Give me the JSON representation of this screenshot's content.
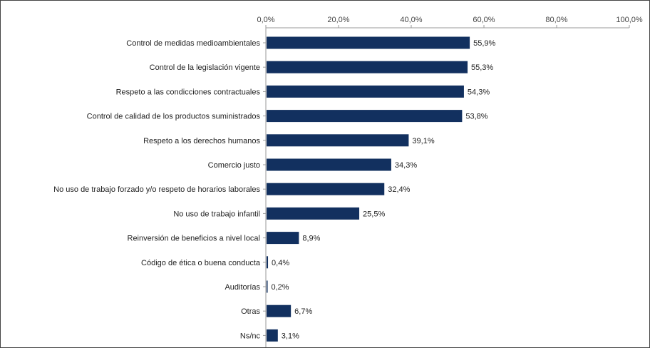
{
  "chart_data": {
    "type": "bar",
    "orientation": "horizontal",
    "categories": [
      "Control de  medidas medioambientales",
      "Control de la legislación vigente",
      "Respeto a las condicciones contractuales",
      "Control de calidad de los productos suministrados",
      "Respeto a los derechos humanos",
      "Comercio justo",
      "No uso de trabajo forzado y/o respeto de horarios laborales",
      "No uso de trabajo infantil",
      "Reinversión de beneficios a nivel local",
      "Código de ética o buena conducta",
      "Auditorías",
      "Otras",
      "Ns/nc"
    ],
    "values": [
      55.9,
      55.3,
      54.3,
      53.8,
      39.1,
      34.3,
      32.4,
      25.5,
      8.9,
      0.4,
      0.2,
      6.7,
      3.1
    ],
    "value_labels": [
      "55,9%",
      "55,3%",
      "54,3%",
      "53,8%",
      "39,1%",
      "34,3%",
      "32,4%",
      "25,5%",
      "8,9%",
      "0,4%",
      "0,2%",
      "6,7%",
      "3,1%"
    ],
    "xlim": [
      0,
      100
    ],
    "x_ticks": [
      0,
      20,
      40,
      60,
      80,
      100
    ],
    "x_tick_labels": [
      "0,0%",
      "20,0%",
      "40,0%",
      "60,0%",
      "80,0%",
      "100,0%"
    ],
    "axis_position": "top",
    "grid": false,
    "legend": "none",
    "colors": {
      "bar": "#12305f",
      "axis": "#9a9a9a",
      "frame": "#444444"
    }
  }
}
